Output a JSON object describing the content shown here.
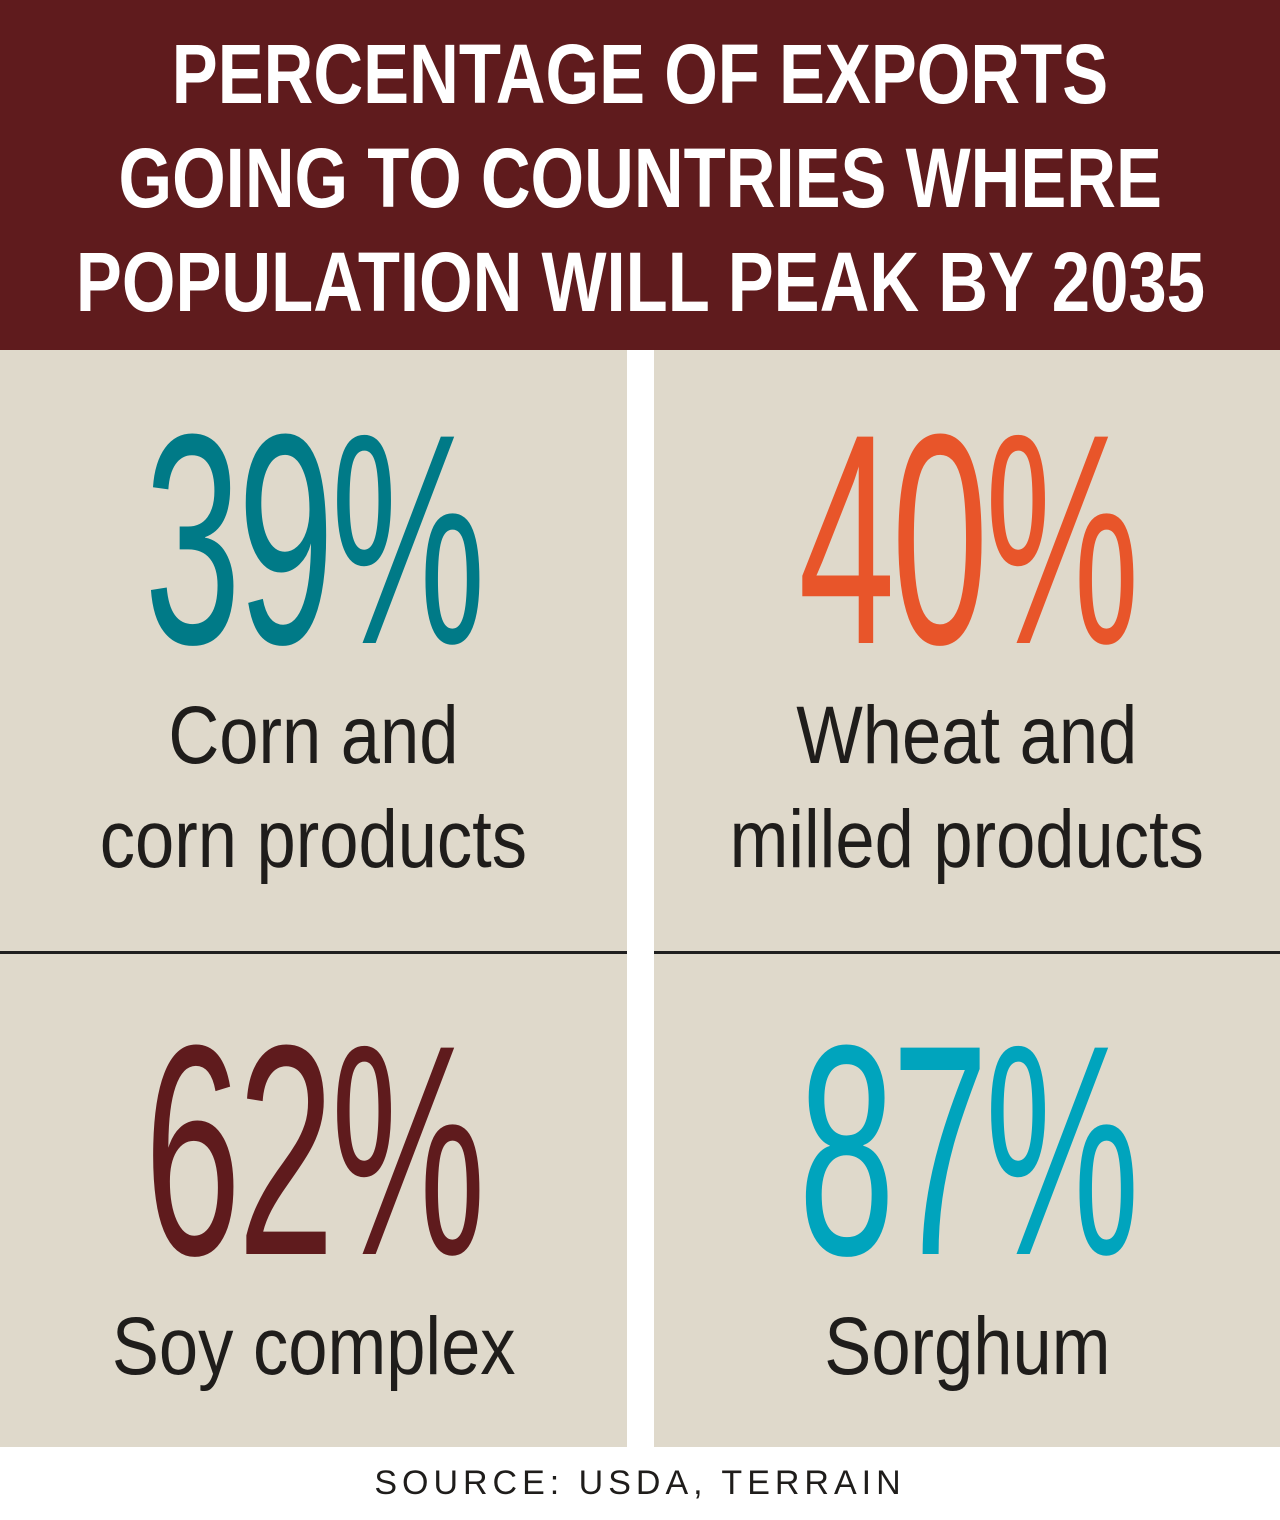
{
  "header": {
    "title_lines": [
      "PERCENTAGE OF EXPORTS",
      "GOING TO COUNTRIES WHERE",
      "POPULATION WILL PEAK BY 2035"
    ],
    "background_color": "#5f1b1d"
  },
  "stats": [
    {
      "value_text": "39%",
      "value": 39,
      "label_lines": [
        "Corn and",
        "corn products"
      ],
      "color": "#007a87"
    },
    {
      "value_text": "40%",
      "value": 40,
      "label_lines": [
        "Wheat and",
        "milled products"
      ],
      "color": "#e8552a"
    },
    {
      "value_text": "62%",
      "value": 62,
      "label_lines": [
        "Soy complex"
      ],
      "color": "#5f1b1d"
    },
    {
      "value_text": "87%",
      "value": 87,
      "label_lines": [
        "Sorghum"
      ],
      "color": "#00a4bd"
    }
  ],
  "panel_color": "#dfd9cb",
  "source": "SOURCE: USDA, TERRAIN"
}
